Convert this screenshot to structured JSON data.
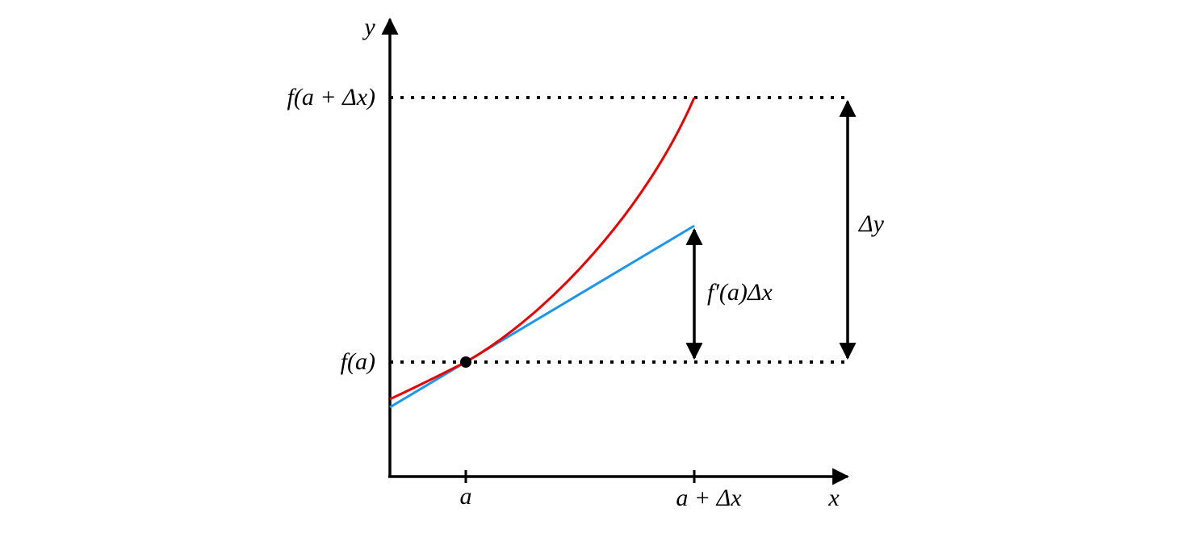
{
  "axes": {
    "y_label": "y",
    "x_label": "x"
  },
  "y_marks": [
    "f(a + Δx)",
    "f(a)"
  ],
  "x_marks": [
    "a",
    "a + Δx"
  ],
  "annotations": {
    "delta_y": "Δy",
    "linear_change": "f′(a)Δx"
  }
}
